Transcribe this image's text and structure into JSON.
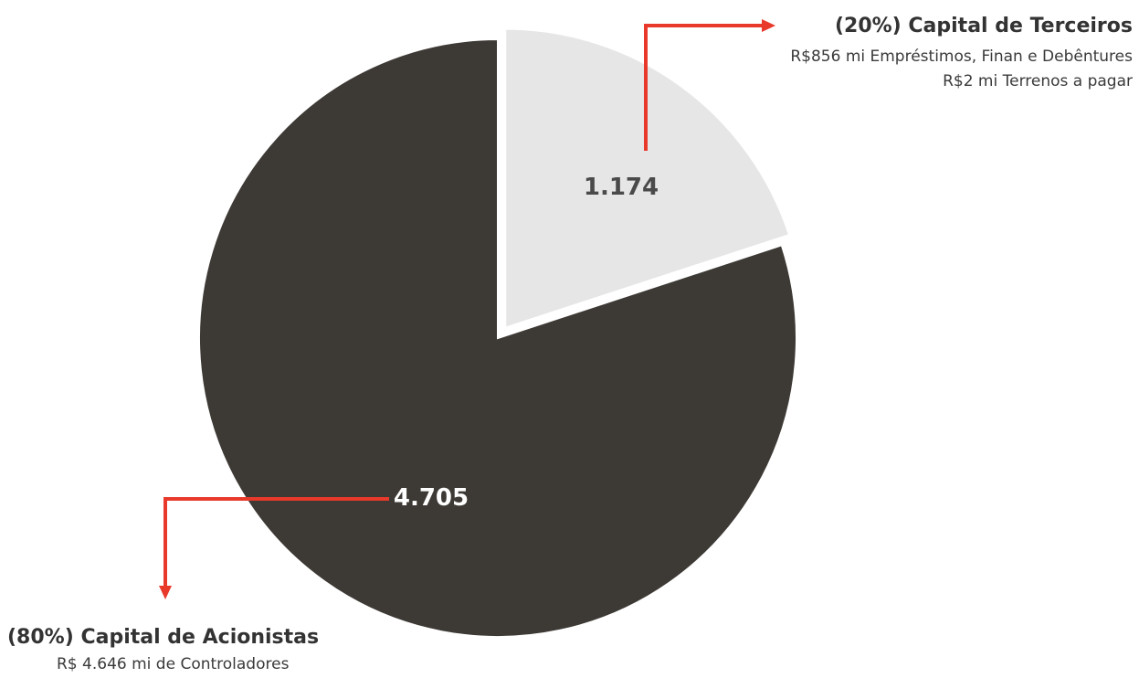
{
  "chart_data": {
    "type": "pie",
    "slices": [
      {
        "value": 1.174,
        "value_label": "1.174",
        "percent_label": "(20%)",
        "name": "Capital de Terceiros",
        "details": [
          "R$856 mi Empréstimos, Finan e Debêntures",
          "R$2 mi Terrenos a pagar"
        ],
        "color": "#e6e6e6",
        "label_color": "#4a4a4a",
        "exploded": true
      },
      {
        "value": 4.705,
        "value_label": "4.705",
        "percent_label": "(80%)",
        "name": "Capital de Acionistas",
        "details": [
          "R$ 4.646 mi de Controladores"
        ],
        "color": "#3d3935",
        "label_color": "#ffffff",
        "exploded": false
      }
    ],
    "start_angle": "12 o'clock",
    "direction": "clockwise",
    "title": "",
    "legend": "none"
  },
  "colors": {
    "accent_arrow": "#e8392b",
    "text": "#333333"
  }
}
